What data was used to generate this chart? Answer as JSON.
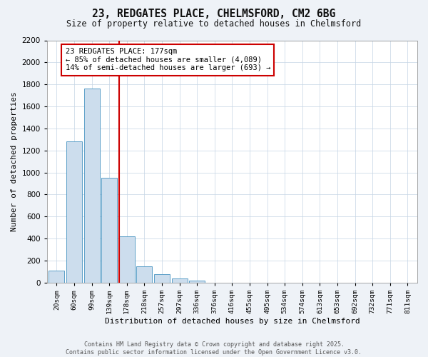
{
  "title_line1": "23, REDGATES PLACE, CHELMSFORD, CM2 6BG",
  "title_line2": "Size of property relative to detached houses in Chelmsford",
  "xlabel": "Distribution of detached houses by size in Chelmsford",
  "ylabel": "Number of detached properties",
  "categories": [
    "20sqm",
    "60sqm",
    "99sqm",
    "139sqm",
    "178sqm",
    "218sqm",
    "257sqm",
    "297sqm",
    "336sqm",
    "376sqm",
    "416sqm",
    "455sqm",
    "495sqm",
    "534sqm",
    "574sqm",
    "613sqm",
    "653sqm",
    "692sqm",
    "732sqm",
    "771sqm",
    "811sqm"
  ],
  "values": [
    110,
    1280,
    1760,
    950,
    420,
    150,
    75,
    40,
    20,
    0,
    0,
    0,
    0,
    0,
    0,
    0,
    0,
    0,
    0,
    0,
    0
  ],
  "bar_color": "#ccdded",
  "bar_edge_color": "#5b9fc8",
  "vline_color": "#cc0000",
  "vline_x": 3.575,
  "annotation_text": "23 REDGATES PLACE: 177sqm\n← 85% of detached houses are smaller (4,089)\n14% of semi-detached houses are larger (693) →",
  "annotation_box_color": "#cc0000",
  "annotation_bg_color": "#ffffff",
  "ylim": [
    0,
    2200
  ],
  "yticks": [
    0,
    200,
    400,
    600,
    800,
    1000,
    1200,
    1400,
    1600,
    1800,
    2000,
    2200
  ],
  "footer_line1": "Contains HM Land Registry data © Crown copyright and database right 2025.",
  "footer_line2": "Contains public sector information licensed under the Open Government Licence v3.0.",
  "bg_color": "#eef2f7",
  "plot_bg_color": "#ffffff",
  "grid_color": "#c5d5e5"
}
